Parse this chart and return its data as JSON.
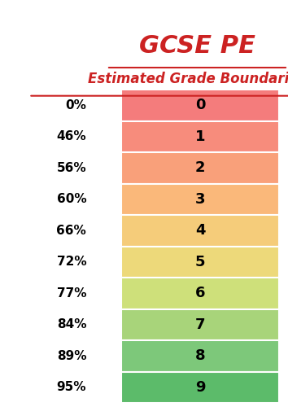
{
  "title": "GCSE PE",
  "subtitle": "Estimated Grade Boundaries",
  "grades": [
    0,
    1,
    2,
    3,
    4,
    5,
    6,
    7,
    8,
    9
  ],
  "boundaries": [
    "0%",
    "46%",
    "56%",
    "60%",
    "66%",
    "72%",
    "77%",
    "84%",
    "89%",
    "95%"
  ],
  "colors": [
    "#F47C7C",
    "#F78C7C",
    "#F9A07A",
    "#FAB87A",
    "#F5CC7A",
    "#EDD97A",
    "#CEE07A",
    "#A8D47A",
    "#7DC87A",
    "#5CBB6A"
  ],
  "bg_color": "#FFFFFF",
  "title_color": "#CC2222",
  "boundary_text_color": "#000000",
  "grade_text_color": "#000000",
  "fig_width": 3.54,
  "fig_height": 5.0,
  "dpi": 100
}
